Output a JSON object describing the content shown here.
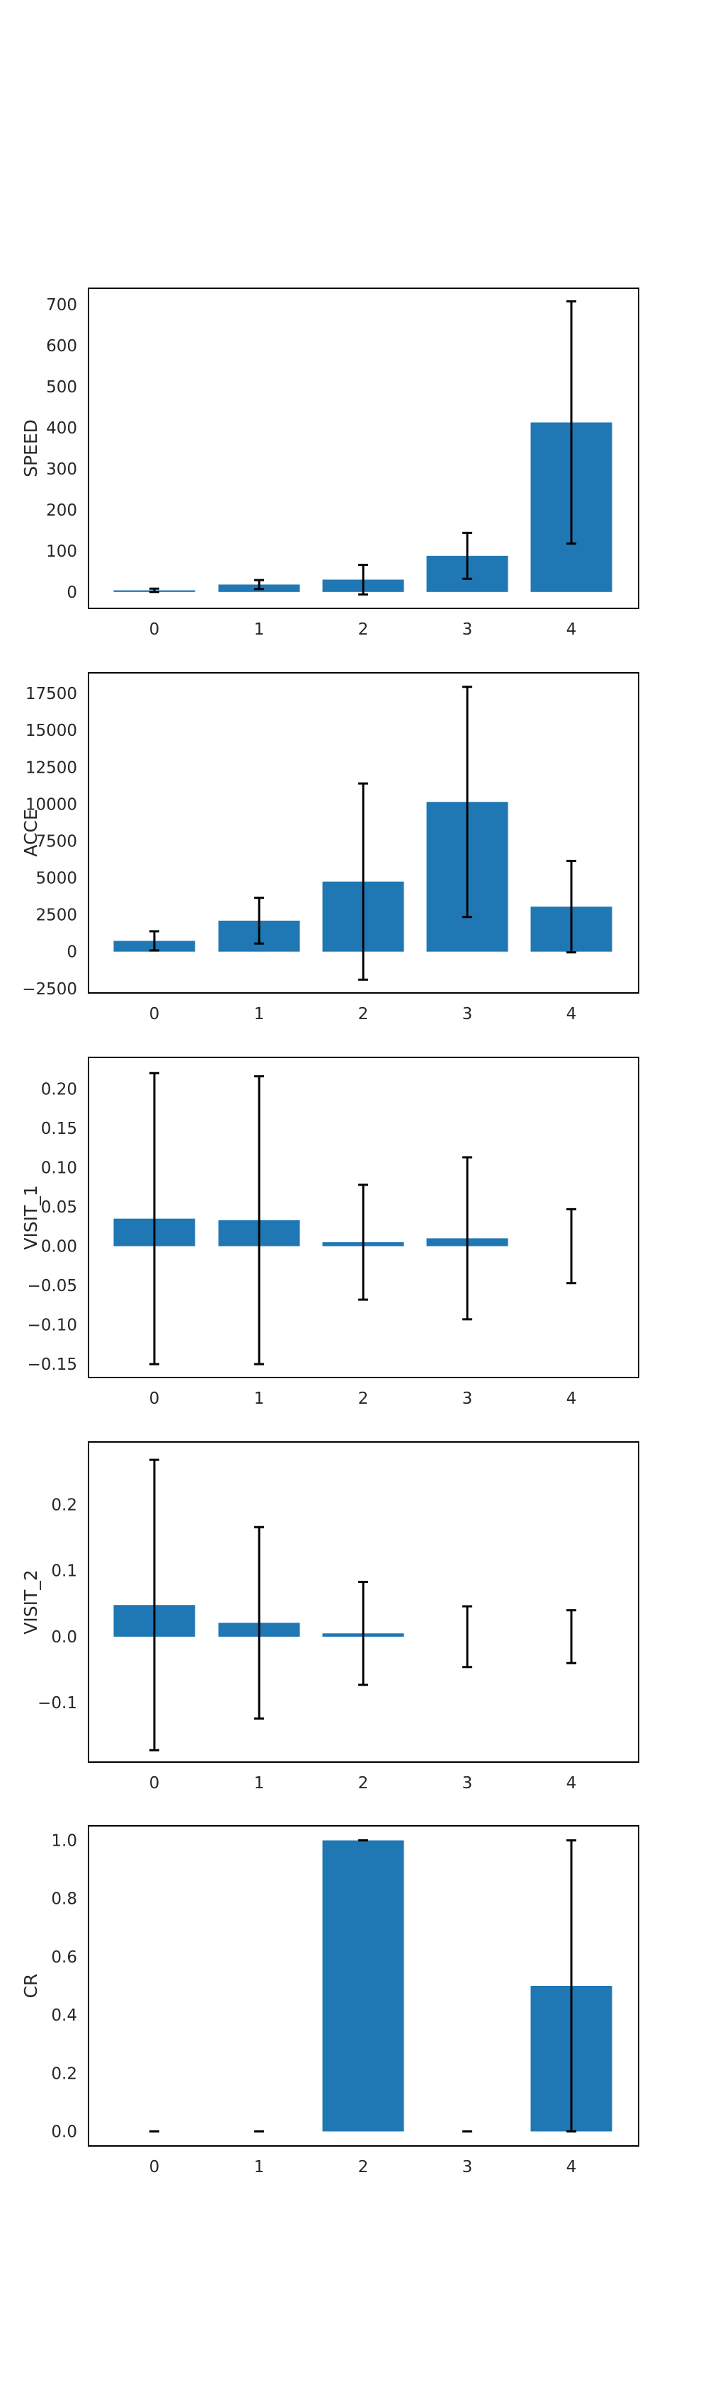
{
  "chart_data": [
    {
      "type": "bar",
      "ylabel": "SPEED",
      "categories": [
        "0",
        "1",
        "2",
        "3",
        "4"
      ],
      "values": [
        4,
        18,
        30,
        88,
        413
      ],
      "errors": [
        4,
        11,
        36,
        56,
        295
      ],
      "ylim": [
        -40,
        740
      ],
      "yticks": [
        0,
        100,
        200,
        300,
        400,
        500,
        600,
        700
      ],
      "ytick_labels": [
        "0",
        "100",
        "200",
        "300",
        "400",
        "500",
        "600",
        "700"
      ]
    },
    {
      "type": "bar",
      "ylabel": "ACCE",
      "categories": [
        "0",
        "1",
        "2",
        "3",
        "4"
      ],
      "values": [
        730,
        2100,
        4750,
        10150,
        3050
      ],
      "errors": [
        650,
        1550,
        6650,
        7800,
        3100
      ],
      "ylim": [
        -2800,
        18900
      ],
      "yticks": [
        -2500,
        0,
        2500,
        5000,
        7500,
        10000,
        12500,
        15000,
        17500
      ],
      "ytick_labels": [
        "−2500",
        "0",
        "2500",
        "5000",
        "7500",
        "10000",
        "12500",
        "15000",
        "17500"
      ]
    },
    {
      "type": "bar",
      "ylabel": "VISIT_1",
      "categories": [
        "0",
        "1",
        "2",
        "3",
        "4"
      ],
      "values": [
        0.035,
        0.033,
        0.005,
        0.01,
        0.0
      ],
      "errors": [
        0.185,
        0.183,
        0.073,
        0.103,
        0.047
      ],
      "ylim": [
        -0.167,
        0.24
      ],
      "yticks": [
        -0.15,
        -0.1,
        -0.05,
        0.0,
        0.05,
        0.1,
        0.15,
        0.2
      ],
      "ytick_labels": [
        "−0.15",
        "−0.10",
        "−0.05",
        "0.00",
        "0.05",
        "0.10",
        "0.15",
        "0.20"
      ]
    },
    {
      "type": "bar",
      "ylabel": "VISIT_2",
      "categories": [
        "0",
        "1",
        "2",
        "3",
        "4"
      ],
      "values": [
        0.048,
        0.021,
        0.005,
        0.0,
        0.0
      ],
      "errors": [
        0.22,
        0.145,
        0.078,
        0.046,
        0.04
      ],
      "ylim": [
        -0.19,
        0.295
      ],
      "yticks": [
        -0.1,
        0.0,
        0.1,
        0.2
      ],
      "ytick_labels": [
        "−0.1",
        "0.0",
        "0.1",
        "0.2"
      ]
    },
    {
      "type": "bar",
      "ylabel": "CR",
      "categories": [
        "0",
        "1",
        "2",
        "3",
        "4"
      ],
      "values": [
        0.0,
        0.0,
        1.0,
        0.0,
        0.5
      ],
      "errors": [
        0.0,
        0.0,
        0.0,
        0.0,
        0.5
      ],
      "ylim": [
        -0.05,
        1.05
      ],
      "yticks": [
        0.0,
        0.2,
        0.4,
        0.6,
        0.8,
        1.0
      ],
      "ytick_labels": [
        "0.0",
        "0.2",
        "0.4",
        "0.6",
        "0.8",
        "1.0"
      ]
    }
  ],
  "colors": {
    "bar": "#1f77b4",
    "error": "#000000",
    "frame": "#000000",
    "text": "#262626"
  }
}
